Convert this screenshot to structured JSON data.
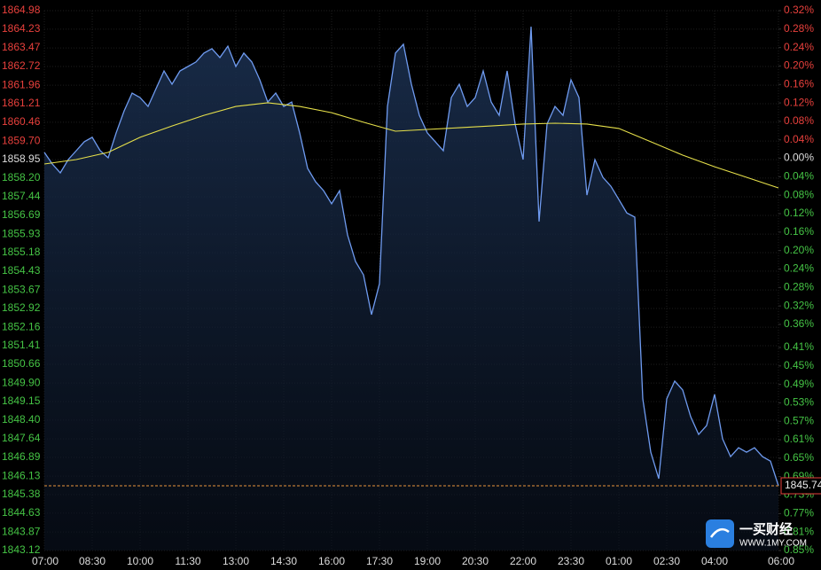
{
  "chart_data": {
    "type": "line",
    "x": [
      "07:00",
      "07:15",
      "07:30",
      "07:45",
      "08:00",
      "08:15",
      "08:30",
      "08:45",
      "09:00",
      "09:15",
      "09:30",
      "09:45",
      "10:00",
      "10:15",
      "10:30",
      "10:45",
      "11:00",
      "11:15",
      "11:30",
      "11:45",
      "12:00",
      "12:15",
      "12:30",
      "12:45",
      "13:00",
      "13:15",
      "13:30",
      "13:45",
      "14:00",
      "14:15",
      "14:30",
      "14:45",
      "15:00",
      "15:15",
      "15:30",
      "15:45",
      "16:00",
      "16:15",
      "16:30",
      "16:45",
      "17:00",
      "17:15",
      "17:30",
      "17:45",
      "18:00",
      "18:15",
      "18:30",
      "18:45",
      "19:00",
      "19:15",
      "19:30",
      "19:45",
      "20:00",
      "20:15",
      "20:30",
      "20:45",
      "21:00",
      "21:15",
      "21:30",
      "21:45",
      "22:00",
      "22:15",
      "22:30",
      "22:45",
      "23:00",
      "23:15",
      "23:30",
      "23:45",
      "00:00",
      "00:15",
      "00:30",
      "00:45",
      "01:00",
      "01:15",
      "01:30",
      "01:45",
      "02:00",
      "02:15",
      "02:30",
      "02:45",
      "03:00",
      "03:15",
      "03:30",
      "03:45",
      "04:00",
      "04:15",
      "04:30",
      "04:45",
      "05:00",
      "05:15",
      "05:30",
      "05:45",
      "06:00"
    ],
    "series": [
      {
        "color": "#6f9bf0",
        "values": [
          1859.24,
          1858.77,
          1858.41,
          1858.95,
          1859.31,
          1859.67,
          1859.85,
          1859.31,
          1859.02,
          1860.03,
          1860.92,
          1861.64,
          1861.46,
          1861.1,
          1861.82,
          1862.54,
          1862.0,
          1862.54,
          1862.72,
          1862.9,
          1863.26,
          1863.44,
          1863.08,
          1863.54,
          1862.72,
          1863.26,
          1862.9,
          1862.18,
          1861.28,
          1861.64,
          1861.1,
          1861.28,
          1860.03,
          1858.59,
          1858.05,
          1857.69,
          1857.16,
          1857.69,
          1855.9,
          1854.82,
          1854.28,
          1852.67,
          1853.92,
          1861.1,
          1863.26,
          1863.62,
          1862.0,
          1860.74,
          1860.03,
          1859.67,
          1859.31,
          1861.46,
          1862.0,
          1861.1,
          1861.46,
          1862.54,
          1861.28,
          1860.74,
          1862.54,
          1860.39,
          1858.95,
          1864.33,
          1856.44,
          1860.39,
          1861.1,
          1860.74,
          1862.18,
          1861.46,
          1857.51,
          1858.95,
          1858.23,
          1857.87,
          1857.33,
          1856.79,
          1856.62,
          1849.26,
          1847.1,
          1846.03,
          1849.26,
          1849.98,
          1849.62,
          1848.54,
          1847.82,
          1848.18,
          1849.44,
          1847.64,
          1846.92,
          1847.28,
          1847.1,
          1847.28,
          1846.92,
          1846.74,
          1845.74
        ]
      },
      {
        "color": "#e6e04a",
        "x": [
          "07:00",
          "08:00",
          "09:00",
          "10:00",
          "11:00",
          "12:00",
          "13:00",
          "14:00",
          "15:00",
          "16:00",
          "17:00",
          "18:00",
          "19:00",
          "20:00",
          "21:00",
          "22:00",
          "23:00",
          "00:00",
          "01:00",
          "02:00",
          "03:00",
          "04:00",
          "05:00",
          "06:00"
        ],
        "values": [
          1858.77,
          1858.95,
          1859.24,
          1859.85,
          1860.31,
          1860.74,
          1861.1,
          1861.25,
          1861.1,
          1860.85,
          1860.46,
          1860.1,
          1860.17,
          1860.24,
          1860.31,
          1860.39,
          1860.42,
          1860.39,
          1860.21,
          1859.67,
          1859.13,
          1858.66,
          1858.23,
          1857.8
        ]
      }
    ],
    "xticks": [
      "07:00",
      "08:30",
      "10:00",
      "11:30",
      "13:00",
      "14:30",
      "16:00",
      "17:30",
      "19:00",
      "20:30",
      "22:00",
      "23:30",
      "01:00",
      "02:30",
      "04:00",
      "06:00"
    ],
    "ylim": [
      1843.12,
      1864.98
    ],
    "yticks": [
      1864.98,
      1864.23,
      1863.47,
      1862.72,
      1861.96,
      1861.21,
      1860.46,
      {
        "value": 1859.7,
        "label": "1859.70"
      },
      1858.95,
      {
        "value": 1858.2,
        "label": "1858.20"
      },
      1857.44,
      1856.69,
      1855.93,
      1855.18,
      1854.43,
      1853.67,
      1852.92,
      1852.16,
      1851.41,
      1850.66,
      {
        "value": 1849.9,
        "label": "1849.90"
      },
      1849.15,
      {
        "value": 1848.4,
        "label": "1848.40"
      },
      1847.64,
      1846.89,
      1846.13,
      1845.38,
      1844.63,
      1843.87,
      1843.12
    ],
    "y2lim": [
      -0.85,
      0.32
    ],
    "y2ticks": [
      {
        "value": 0.32,
        "label": "0.32%"
      },
      {
        "value": 0.28,
        "label": "0.28%"
      },
      {
        "value": 0.24,
        "label": "0.24%"
      },
      {
        "value": 0.2,
        "label": "0.20%"
      },
      {
        "value": 0.16,
        "label": "0.16%"
      },
      {
        "value": 0.12,
        "label": "0.12%"
      },
      {
        "value": 0.08,
        "label": "0.08%"
      },
      {
        "value": 0.04,
        "label": "0.04%"
      },
      {
        "value": 0,
        "label": "0.00%"
      },
      {
        "value": -0.04,
        "label": "0.04%"
      },
      {
        "value": -0.08,
        "label": "0.08%"
      },
      {
        "value": -0.12,
        "label": "0.12%"
      },
      {
        "value": -0.16,
        "label": "0.16%"
      },
      {
        "value": -0.2,
        "label": "0.20%"
      },
      {
        "value": -0.24,
        "label": "0.24%"
      },
      {
        "value": -0.28,
        "label": "0.28%"
      },
      {
        "value": -0.32,
        "label": "0.32%"
      },
      {
        "value": -0.36,
        "label": "0.36%"
      },
      {
        "value": -0.41,
        "label": "0.41%"
      },
      {
        "value": -0.45,
        "label": "0.45%"
      },
      {
        "value": -0.49,
        "label": "0.49%"
      },
      {
        "value": -0.53,
        "label": "0.53%"
      },
      {
        "value": -0.57,
        "label": "0.57%"
      },
      {
        "value": -0.61,
        "label": "0.61%"
      },
      {
        "value": -0.65,
        "label": "0.65%"
      },
      {
        "value": -0.69,
        "label": "0.69%"
      },
      {
        "value": -0.73,
        "label": "0.73%"
      },
      {
        "value": -0.77,
        "label": "0.77%"
      },
      {
        "value": -0.81,
        "label": "0.81%"
      },
      {
        "value": -0.85,
        "label": "0.85%"
      }
    ],
    "reference_price": 1858.95,
    "up_color": "#e8403c",
    "down_color": "#45c445",
    "last_price": 1845.74,
    "last_price_color": "#e8943c",
    "grid": true
  },
  "watermark": {
    "name": "一买财经",
    "url": "WWW.1MY.COM"
  }
}
